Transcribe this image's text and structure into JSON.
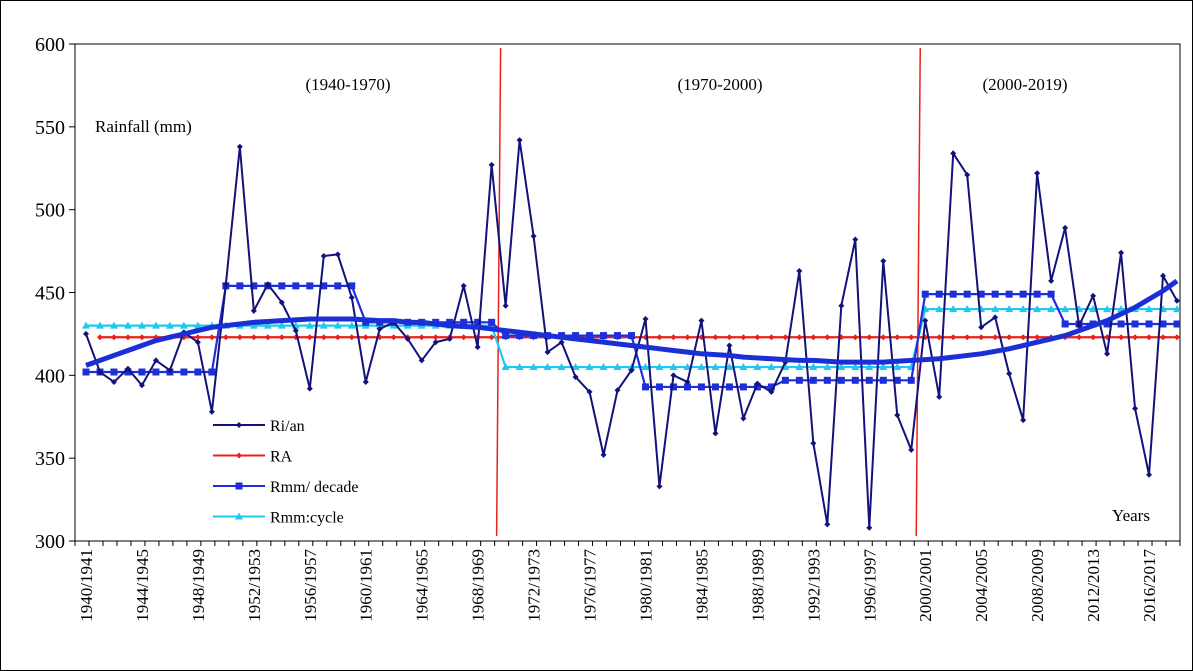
{
  "chart_data": {
    "type": "line",
    "y_label": "Rainfall (mm)",
    "x_label": "Years",
    "annotations": [
      "(1940-1970)",
      "(1970-2000)",
      "(2000-2019)"
    ],
    "categories": [
      "1940/1941",
      null,
      null,
      null,
      "1944/1945",
      null,
      null,
      null,
      "1948/1949",
      null,
      null,
      null,
      "1952/1953",
      null,
      null,
      null,
      "1956/1957",
      null,
      null,
      null,
      "1960/1961",
      null,
      null,
      null,
      "1964/1965",
      null,
      null,
      null,
      "1968/1969",
      null,
      null,
      null,
      "1972/1973",
      null,
      null,
      null,
      "1976/1977",
      null,
      null,
      null,
      "1980/1981",
      null,
      null,
      null,
      "1984/1985",
      null,
      null,
      null,
      "1988/1989",
      null,
      null,
      null,
      "1992/1993",
      null,
      null,
      null,
      "1996/1997",
      null,
      null,
      null,
      "2000/2001",
      null,
      null,
      null,
      "2004/2005",
      null,
      null,
      null,
      "2008/2009",
      null,
      null,
      null,
      "2012/2013",
      null,
      null,
      null,
      "2016/2017",
      null,
      null
    ],
    "ylim": [
      300,
      600
    ],
    "yticks": [
      300,
      350,
      400,
      450,
      500,
      550,
      600
    ],
    "divider_color": "#e8231c",
    "series": [
      {
        "name": "Ri/an",
        "color": "#12127a",
        "marker": "diamond",
        "values": [
          425,
          402,
          396,
          404,
          394,
          409,
          403,
          426,
          420,
          378,
          455,
          538,
          439,
          455,
          444,
          427,
          392,
          472,
          473,
          447,
          396,
          428,
          432,
          422,
          409,
          420,
          422,
          454,
          417,
          527,
          442,
          542,
          484,
          414,
          420,
          399,
          390,
          352,
          391,
          403,
          434,
          333,
          400,
          396,
          433,
          365,
          418,
          374,
          395,
          390,
          408,
          463,
          359,
          310,
          442,
          482,
          308,
          469,
          376,
          355,
          433,
          387,
          534,
          521,
          429,
          435,
          401,
          373,
          522,
          457,
          489,
          430,
          448,
          413,
          474,
          380,
          340,
          460,
          445
        ]
      },
      {
        "name": "RA",
        "color": "#e8231c",
        "marker": "diamond",
        "values": [
          null,
          423,
          423,
          423,
          423,
          423,
          423,
          423,
          423,
          423,
          423,
          423,
          423,
          423,
          423,
          423,
          423,
          423,
          423,
          423,
          423,
          423,
          423,
          423,
          423,
          423,
          423,
          423,
          423,
          423,
          423,
          423,
          423,
          423,
          423,
          423,
          423,
          423,
          423,
          423,
          423,
          423,
          423,
          423,
          423,
          423,
          423,
          423,
          423,
          423,
          423,
          423,
          423,
          423,
          423,
          423,
          423,
          423,
          423,
          423,
          423,
          423,
          423,
          423,
          423,
          423,
          423,
          423,
          423,
          423,
          423,
          423,
          423,
          423,
          423,
          423,
          423,
          423,
          423
        ]
      },
      {
        "name": "Rmm/ decade",
        "color": "#1f2fd8",
        "marker": "square",
        "values": [
          402,
          402,
          402,
          402,
          402,
          402,
          402,
          402,
          402,
          402,
          454,
          454,
          454,
          454,
          454,
          454,
          454,
          454,
          454,
          454,
          432,
          432,
          432,
          432,
          432,
          432,
          432,
          432,
          432,
          432,
          424,
          424,
          424,
          424,
          424,
          424,
          424,
          424,
          424,
          424,
          393,
          393,
          393,
          393,
          393,
          393,
          393,
          393,
          393,
          393,
          397,
          397,
          397,
          397,
          397,
          397,
          397,
          397,
          397,
          397,
          449,
          449,
          449,
          449,
          449,
          449,
          449,
          449,
          449,
          449,
          431,
          431,
          431,
          431,
          431,
          431,
          431,
          431,
          431
        ]
      },
      {
        "name": "Rmm:cycle",
        "color": "#1ec8f0",
        "marker": "triangle",
        "values": [
          430,
          430,
          430,
          430,
          430,
          430,
          430,
          430,
          430,
          430,
          430,
          430,
          430,
          430,
          430,
          430,
          430,
          430,
          430,
          430,
          430,
          430,
          430,
          430,
          430,
          430,
          430,
          430,
          430,
          430,
          405,
          405,
          405,
          405,
          405,
          405,
          405,
          405,
          405,
          405,
          405,
          405,
          405,
          405,
          405,
          405,
          405,
          405,
          405,
          405,
          405,
          405,
          405,
          405,
          405,
          405,
          405,
          405,
          405,
          405,
          440,
          440,
          440,
          440,
          440,
          440,
          440,
          440,
          440,
          440,
          440,
          440,
          440,
          440,
          440,
          440,
          440,
          440,
          440
        ]
      }
    ],
    "trend": {
      "color": "#1a2fd6",
      "values": [
        406,
        409,
        412,
        415,
        418,
        421,
        423,
        425,
        427,
        429,
        430,
        431,
        432,
        432.5,
        433,
        433.5,
        434,
        434,
        434,
        434,
        433.5,
        433,
        433,
        432,
        432,
        431,
        430,
        429.5,
        429,
        428,
        427,
        426,
        425,
        424,
        423,
        422,
        421,
        420,
        419,
        418,
        417,
        416,
        415,
        414,
        413,
        412.5,
        412,
        411,
        410.5,
        410,
        409.5,
        409,
        409,
        408.5,
        408,
        408,
        408,
        408,
        408.5,
        409,
        409.5,
        410,
        411,
        412,
        413,
        414.5,
        416,
        418,
        420,
        422,
        424,
        427,
        430,
        433,
        437,
        441,
        446,
        451,
        457
      ]
    }
  }
}
